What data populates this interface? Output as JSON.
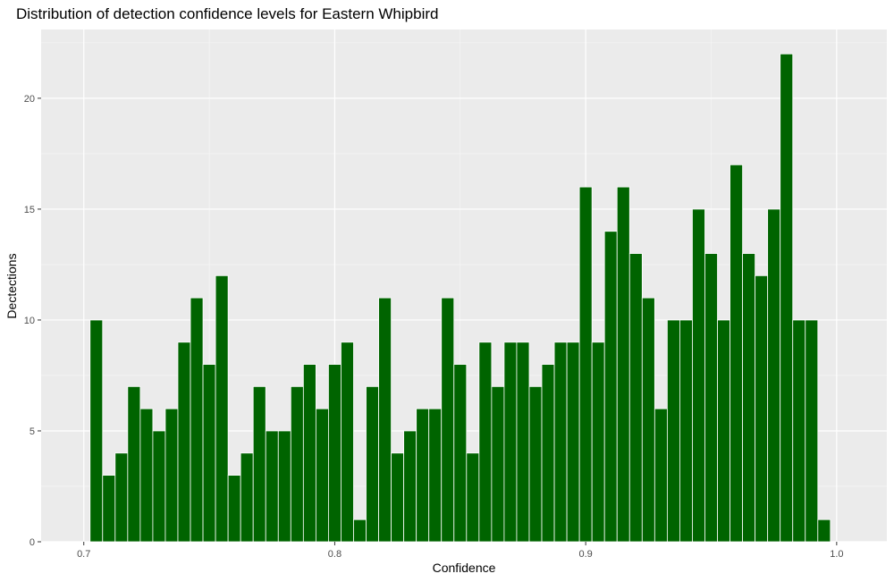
{
  "chart_data": {
    "type": "bar",
    "title": "Distribution of detection confidence levels for Eastern Whipbird",
    "xlabel": "Confidence",
    "ylabel": "Dectections",
    "xlim": [
      0.683,
      1.02
    ],
    "ylim": [
      0,
      23.1
    ],
    "x_ticks": [
      {
        "value": 0.7,
        "label": "0.7"
      },
      {
        "value": 0.8,
        "label": "0.8"
      },
      {
        "value": 0.9,
        "label": "0.9"
      },
      {
        "value": 1.0,
        "label": "1.0"
      }
    ],
    "y_ticks": [
      {
        "value": 0,
        "label": "0"
      },
      {
        "value": 5,
        "label": "5"
      },
      {
        "value": 10,
        "label": "10"
      },
      {
        "value": 15,
        "label": "15"
      },
      {
        "value": 20,
        "label": "20"
      }
    ],
    "grid": true,
    "bin_width": 0.005,
    "bin_centers": [
      0.705,
      0.71,
      0.715,
      0.72,
      0.725,
      0.73,
      0.735,
      0.74,
      0.745,
      0.75,
      0.755,
      0.76,
      0.765,
      0.77,
      0.775,
      0.78,
      0.785,
      0.79,
      0.795,
      0.8,
      0.805,
      0.81,
      0.815,
      0.82,
      0.825,
      0.83,
      0.835,
      0.84,
      0.845,
      0.85,
      0.855,
      0.86,
      0.865,
      0.87,
      0.875,
      0.88,
      0.885,
      0.89,
      0.895,
      0.9,
      0.905,
      0.91,
      0.915,
      0.92,
      0.925,
      0.93,
      0.935,
      0.94,
      0.945,
      0.95,
      0.955,
      0.96,
      0.965,
      0.97,
      0.975,
      0.98,
      0.985,
      0.99,
      0.995
    ],
    "values": [
      10,
      3,
      4,
      7,
      6,
      5,
      6,
      9,
      11,
      8,
      12,
      3,
      4,
      7,
      5,
      5,
      7,
      8,
      6,
      8,
      9,
      1,
      7,
      11,
      4,
      5,
      6,
      6,
      11,
      8,
      4,
      9,
      7,
      9,
      9,
      7,
      8,
      9,
      9,
      16,
      9,
      14,
      16,
      13,
      11,
      6,
      10,
      10,
      15,
      13,
      10,
      17,
      13,
      12,
      15,
      22,
      10,
      10,
      1
    ],
    "colors": {
      "bar_fill": "#006400",
      "bar_outline": "#ffffff",
      "panel_background": "#ebebeb",
      "grid_major": "#ffffff",
      "grid_minor": "#f7f7f7",
      "tick_text": "#4d4d4d",
      "tick_mark": "#333333"
    }
  }
}
